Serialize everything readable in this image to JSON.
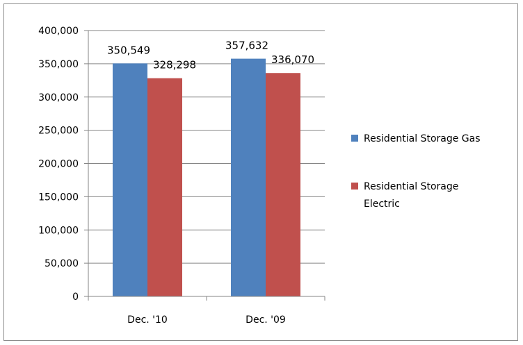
{
  "chart_data": {
    "type": "bar",
    "categories": [
      "Dec. '10",
      "Dec. '09"
    ],
    "series": [
      {
        "name": "Residential Storage Gas",
        "values": [
          350549,
          357632
        ],
        "color": "#4f81bd"
      },
      {
        "name": "Residential Storage Electric",
        "values": [
          328298,
          336070
        ],
        "color": "#c0504d"
      }
    ],
    "data_labels": [
      [
        "350,549",
        "357,632"
      ],
      [
        "328,298",
        "336,070"
      ]
    ],
    "legend_lines": [
      [
        "Residential Storage Gas"
      ],
      [
        "Residential Storage",
        "Electric"
      ]
    ],
    "y_ticks": [
      0,
      50000,
      100000,
      150000,
      200000,
      250000,
      300000,
      350000,
      400000
    ],
    "y_tick_labels": [
      "0",
      "50,000",
      "100,000",
      "150,000",
      "200,000",
      "250,000",
      "300,000",
      "350,000",
      "400,000"
    ],
    "ylim": [
      0,
      400000
    ],
    "grid": true,
    "legend_position": "right",
    "title": "",
    "xlabel": "",
    "ylabel": ""
  }
}
